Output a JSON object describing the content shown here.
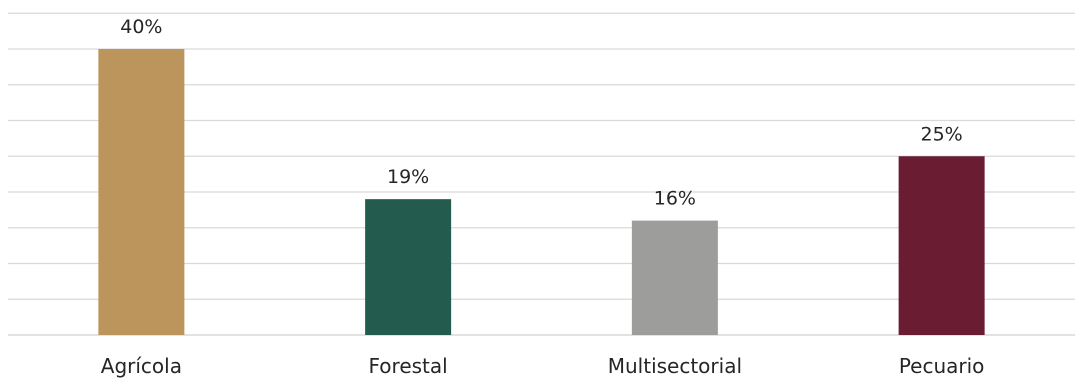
{
  "chart_data": {
    "type": "bar",
    "categories": [
      "Agrícola",
      "Forestal",
      "Multisectorial",
      "Pecuario"
    ],
    "values": [
      40,
      19,
      16,
      25
    ],
    "data_labels": [
      "40%",
      "19%",
      "16%",
      "25%"
    ],
    "colors": [
      "#bc955c",
      "#235b4e",
      "#9d9d9c",
      "#691c32"
    ],
    "gridline_color": "#d9d9d9",
    "ylim": [
      0,
      45
    ],
    "ytick_step": 5,
    "grid": true,
    "legend": false,
    "title": "",
    "xlabel": "",
    "ylabel": ""
  }
}
